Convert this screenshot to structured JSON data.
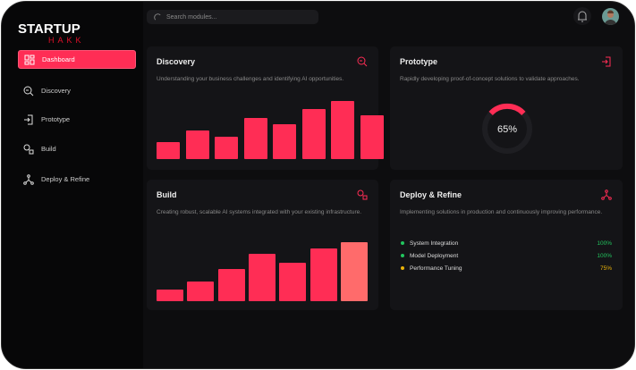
{
  "brand": {
    "name": "STARTUP",
    "sub": "HAKK"
  },
  "search": {
    "placeholder": "Search modules..."
  },
  "sidebar": {
    "items": [
      {
        "label": "Dashboard",
        "icon": "grid-icon",
        "active": true
      },
      {
        "label": "Discovery",
        "icon": "search-icon"
      },
      {
        "label": "Prototype",
        "icon": "login-icon"
      },
      {
        "label": "Build",
        "icon": "components-icon"
      },
      {
        "label": "Deploy & Refine",
        "icon": "network-icon"
      }
    ]
  },
  "cards": {
    "discovery": {
      "title": "Discovery",
      "desc": "Understanding your business challenges and identifying AI opportunities.",
      "bars": [
        19,
        32,
        25,
        45,
        38,
        55,
        64,
        48
      ]
    },
    "prototype": {
      "title": "Prototype",
      "desc": "Rapidly developing proof-of-concept solutions to validate approaches.",
      "progress": 65,
      "progress_label": "65%"
    },
    "build": {
      "title": "Build",
      "desc": "Creating robust, scalable AI systems integrated with your existing infrastructure.",
      "bars": [
        13,
        22,
        35,
        52,
        42,
        58,
        65
      ]
    },
    "deploy": {
      "title": "Deploy & Refine",
      "desc": "Implementing solutions in production and continuously improving performance.",
      "items": [
        {
          "label": "System Integration",
          "value": "100%",
          "color": "#22c55e"
        },
        {
          "label": "Model Deployment",
          "value": "100%",
          "color": "#22c55e"
        },
        {
          "label": "Performance Tuning",
          "value": "75%",
          "color": "#eab308"
        }
      ]
    }
  },
  "colors": {
    "accent": "#ff2d55",
    "accent_light": "#ff6b6b"
  }
}
